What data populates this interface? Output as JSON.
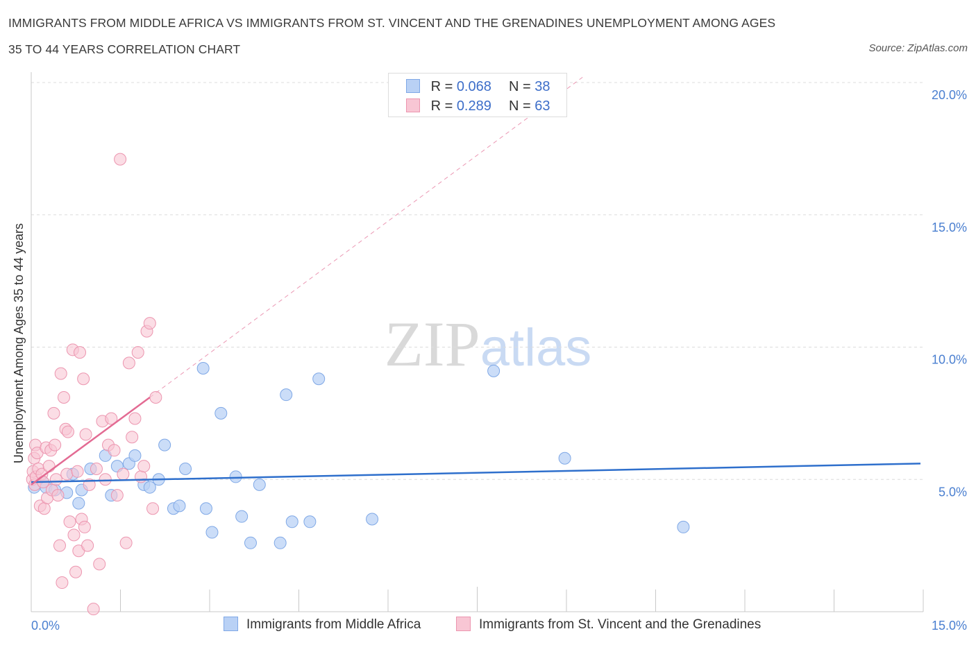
{
  "title_line1": "IMMIGRANTS FROM MIDDLE AFRICA VS IMMIGRANTS FROM ST. VINCENT AND THE GRENADINES UNEMPLOYMENT AMONG AGES",
  "title_line2": "35 TO 44 YEARS CORRELATION CHART",
  "source": "Source: ZipAtlas.com",
  "watermark": "ZIPatlas",
  "colors": {
    "blue_fill": "#b9d1f5",
    "blue_stroke": "#7fa8e6",
    "blue_line": "#2e6fcc",
    "pink_fill": "#f8c6d4",
    "pink_stroke": "#ec95af",
    "pink_line": "#e36b93",
    "tick_label": "#4a7fd0",
    "grid": "#dcdcdc"
  },
  "legend": {
    "rows": [
      {
        "r_label": "R =",
        "r_value": "0.068",
        "n_label": "N =",
        "n_value": "38"
      },
      {
        "r_label": "R =",
        "r_value": "0.289",
        "n_label": "N =",
        "n_value": "63"
      }
    ]
  },
  "chart_data": {
    "type": "scatter",
    "title": "IMMIGRANTS FROM MIDDLE AFRICA VS IMMIGRANTS FROM ST. VINCENT AND THE GRENADINES UNEMPLOYMENT AMONG AGES 35 TO 44 YEARS CORRELATION CHART",
    "xlabel": "",
    "ylabel": "Unemployment Among Ages 35 to 44 years",
    "xlim": [
      0,
      15
    ],
    "ylim": [
      0,
      20
    ],
    "x_tick_labels": [
      "0.0%",
      "15.0%"
    ],
    "y_ticks": [
      5,
      10,
      15,
      20
    ],
    "y_tick_labels": [
      "5.0%",
      "10.0%",
      "15.0%",
      "20.0%"
    ],
    "grid": true,
    "series": [
      {
        "name": "Immigrants from Middle Africa",
        "R": 0.068,
        "N": 38,
        "trend": {
          "x": [
            0,
            15
          ],
          "y": [
            4.9,
            5.6
          ],
          "style": "solid"
        },
        "points": [
          [
            0.05,
            4.7
          ],
          [
            0.2,
            4.9
          ],
          [
            0.25,
            4.7
          ],
          [
            0.4,
            4.6
          ],
          [
            0.6,
            4.5
          ],
          [
            0.7,
            5.2
          ],
          [
            0.8,
            4.1
          ],
          [
            0.85,
            4.6
          ],
          [
            1.0,
            5.4
          ],
          [
            1.25,
            5.9
          ],
          [
            1.35,
            4.4
          ],
          [
            1.45,
            5.5
          ],
          [
            1.65,
            5.6
          ],
          [
            1.75,
            5.9
          ],
          [
            1.9,
            4.8
          ],
          [
            2.0,
            4.7
          ],
          [
            2.15,
            5.0
          ],
          [
            2.25,
            6.3
          ],
          [
            2.4,
            3.9
          ],
          [
            2.5,
            4.0
          ],
          [
            2.6,
            5.4
          ],
          [
            2.9,
            9.2
          ],
          [
            2.95,
            3.9
          ],
          [
            3.05,
            3.0
          ],
          [
            3.2,
            7.5
          ],
          [
            3.45,
            5.1
          ],
          [
            3.55,
            3.6
          ],
          [
            3.7,
            2.6
          ],
          [
            3.85,
            4.8
          ],
          [
            4.2,
            2.6
          ],
          [
            4.3,
            8.2
          ],
          [
            4.4,
            3.4
          ],
          [
            4.7,
            3.4
          ],
          [
            4.85,
            8.8
          ],
          [
            5.75,
            3.5
          ],
          [
            7.8,
            9.1
          ],
          [
            9.0,
            5.8
          ],
          [
            11.0,
            3.2
          ]
        ]
      },
      {
        "name": "Immigrants from St. Vincent and the Grenadines",
        "R": 0.289,
        "N": 63,
        "trend": {
          "x": [
            0,
            2.0
          ],
          "y": [
            4.8,
            8.1
          ],
          "style": "solid",
          "extended": {
            "x": [
              2.0,
              9.3
            ],
            "y": [
              8.1,
              20.2
            ],
            "style": "dashed"
          }
        },
        "points": [
          [
            0.02,
            5.0
          ],
          [
            0.03,
            5.3
          ],
          [
            0.05,
            5.8
          ],
          [
            0.06,
            4.8
          ],
          [
            0.07,
            6.3
          ],
          [
            0.08,
            5.1
          ],
          [
            0.1,
            6.0
          ],
          [
            0.12,
            5.4
          ],
          [
            0.15,
            4.0
          ],
          [
            0.18,
            5.2
          ],
          [
            0.2,
            4.9
          ],
          [
            0.22,
            3.9
          ],
          [
            0.25,
            6.2
          ],
          [
            0.27,
            4.3
          ],
          [
            0.3,
            5.5
          ],
          [
            0.33,
            6.1
          ],
          [
            0.35,
            4.6
          ],
          [
            0.38,
            7.5
          ],
          [
            0.4,
            6.3
          ],
          [
            0.42,
            5.0
          ],
          [
            0.45,
            4.4
          ],
          [
            0.48,
            2.5
          ],
          [
            0.5,
            9.0
          ],
          [
            0.52,
            1.1
          ],
          [
            0.55,
            8.1
          ],
          [
            0.58,
            6.9
          ],
          [
            0.6,
            5.2
          ],
          [
            0.62,
            6.8
          ],
          [
            0.65,
            3.4
          ],
          [
            0.7,
            9.9
          ],
          [
            0.72,
            2.9
          ],
          [
            0.75,
            1.5
          ],
          [
            0.78,
            5.3
          ],
          [
            0.8,
            2.3
          ],
          [
            0.82,
            9.8
          ],
          [
            0.85,
            3.5
          ],
          [
            0.88,
            8.8
          ],
          [
            0.9,
            3.2
          ],
          [
            0.92,
            6.7
          ],
          [
            0.95,
            2.5
          ],
          [
            0.98,
            4.8
          ],
          [
            1.05,
            0.1
          ],
          [
            1.1,
            5.4
          ],
          [
            1.15,
            1.8
          ],
          [
            1.2,
            7.2
          ],
          [
            1.25,
            5.0
          ],
          [
            1.3,
            6.3
          ],
          [
            1.35,
            7.3
          ],
          [
            1.4,
            6.1
          ],
          [
            1.45,
            4.4
          ],
          [
            1.5,
            17.1
          ],
          [
            1.55,
            5.2
          ],
          [
            1.6,
            2.6
          ],
          [
            1.65,
            9.4
          ],
          [
            1.7,
            6.6
          ],
          [
            1.75,
            7.3
          ],
          [
            1.8,
            9.8
          ],
          [
            1.85,
            5.1
          ],
          [
            1.9,
            5.5
          ],
          [
            1.95,
            10.6
          ],
          [
            2.0,
            10.9
          ],
          [
            2.05,
            3.9
          ],
          [
            2.1,
            8.1
          ]
        ]
      }
    ]
  }
}
